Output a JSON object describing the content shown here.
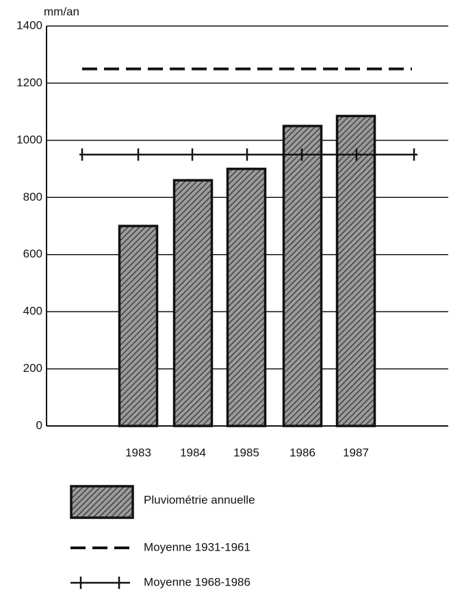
{
  "chart_data": {
    "type": "bar",
    "y_label": "mm/an",
    "categories": [
      "1983",
      "1984",
      "1985",
      "1986",
      "1987"
    ],
    "series": [
      {
        "name": "Pluviométrie annuelle",
        "color": "#555555",
        "values": [
          700,
          860,
          900,
          1050,
          1085
        ]
      }
    ],
    "lines": [
      {
        "name": "Moyenne 1931-1961",
        "value": 1250,
        "style": "dashed",
        "color": "#111111"
      },
      {
        "name": "Moyenne 1968-1986",
        "value": 950,
        "style": "crossed",
        "color": "#111111"
      }
    ],
    "ylim": [
      0,
      1400
    ],
    "yticks": [
      0,
      200,
      400,
      600,
      800,
      1000,
      1200,
      1400
    ],
    "grid": true
  }
}
